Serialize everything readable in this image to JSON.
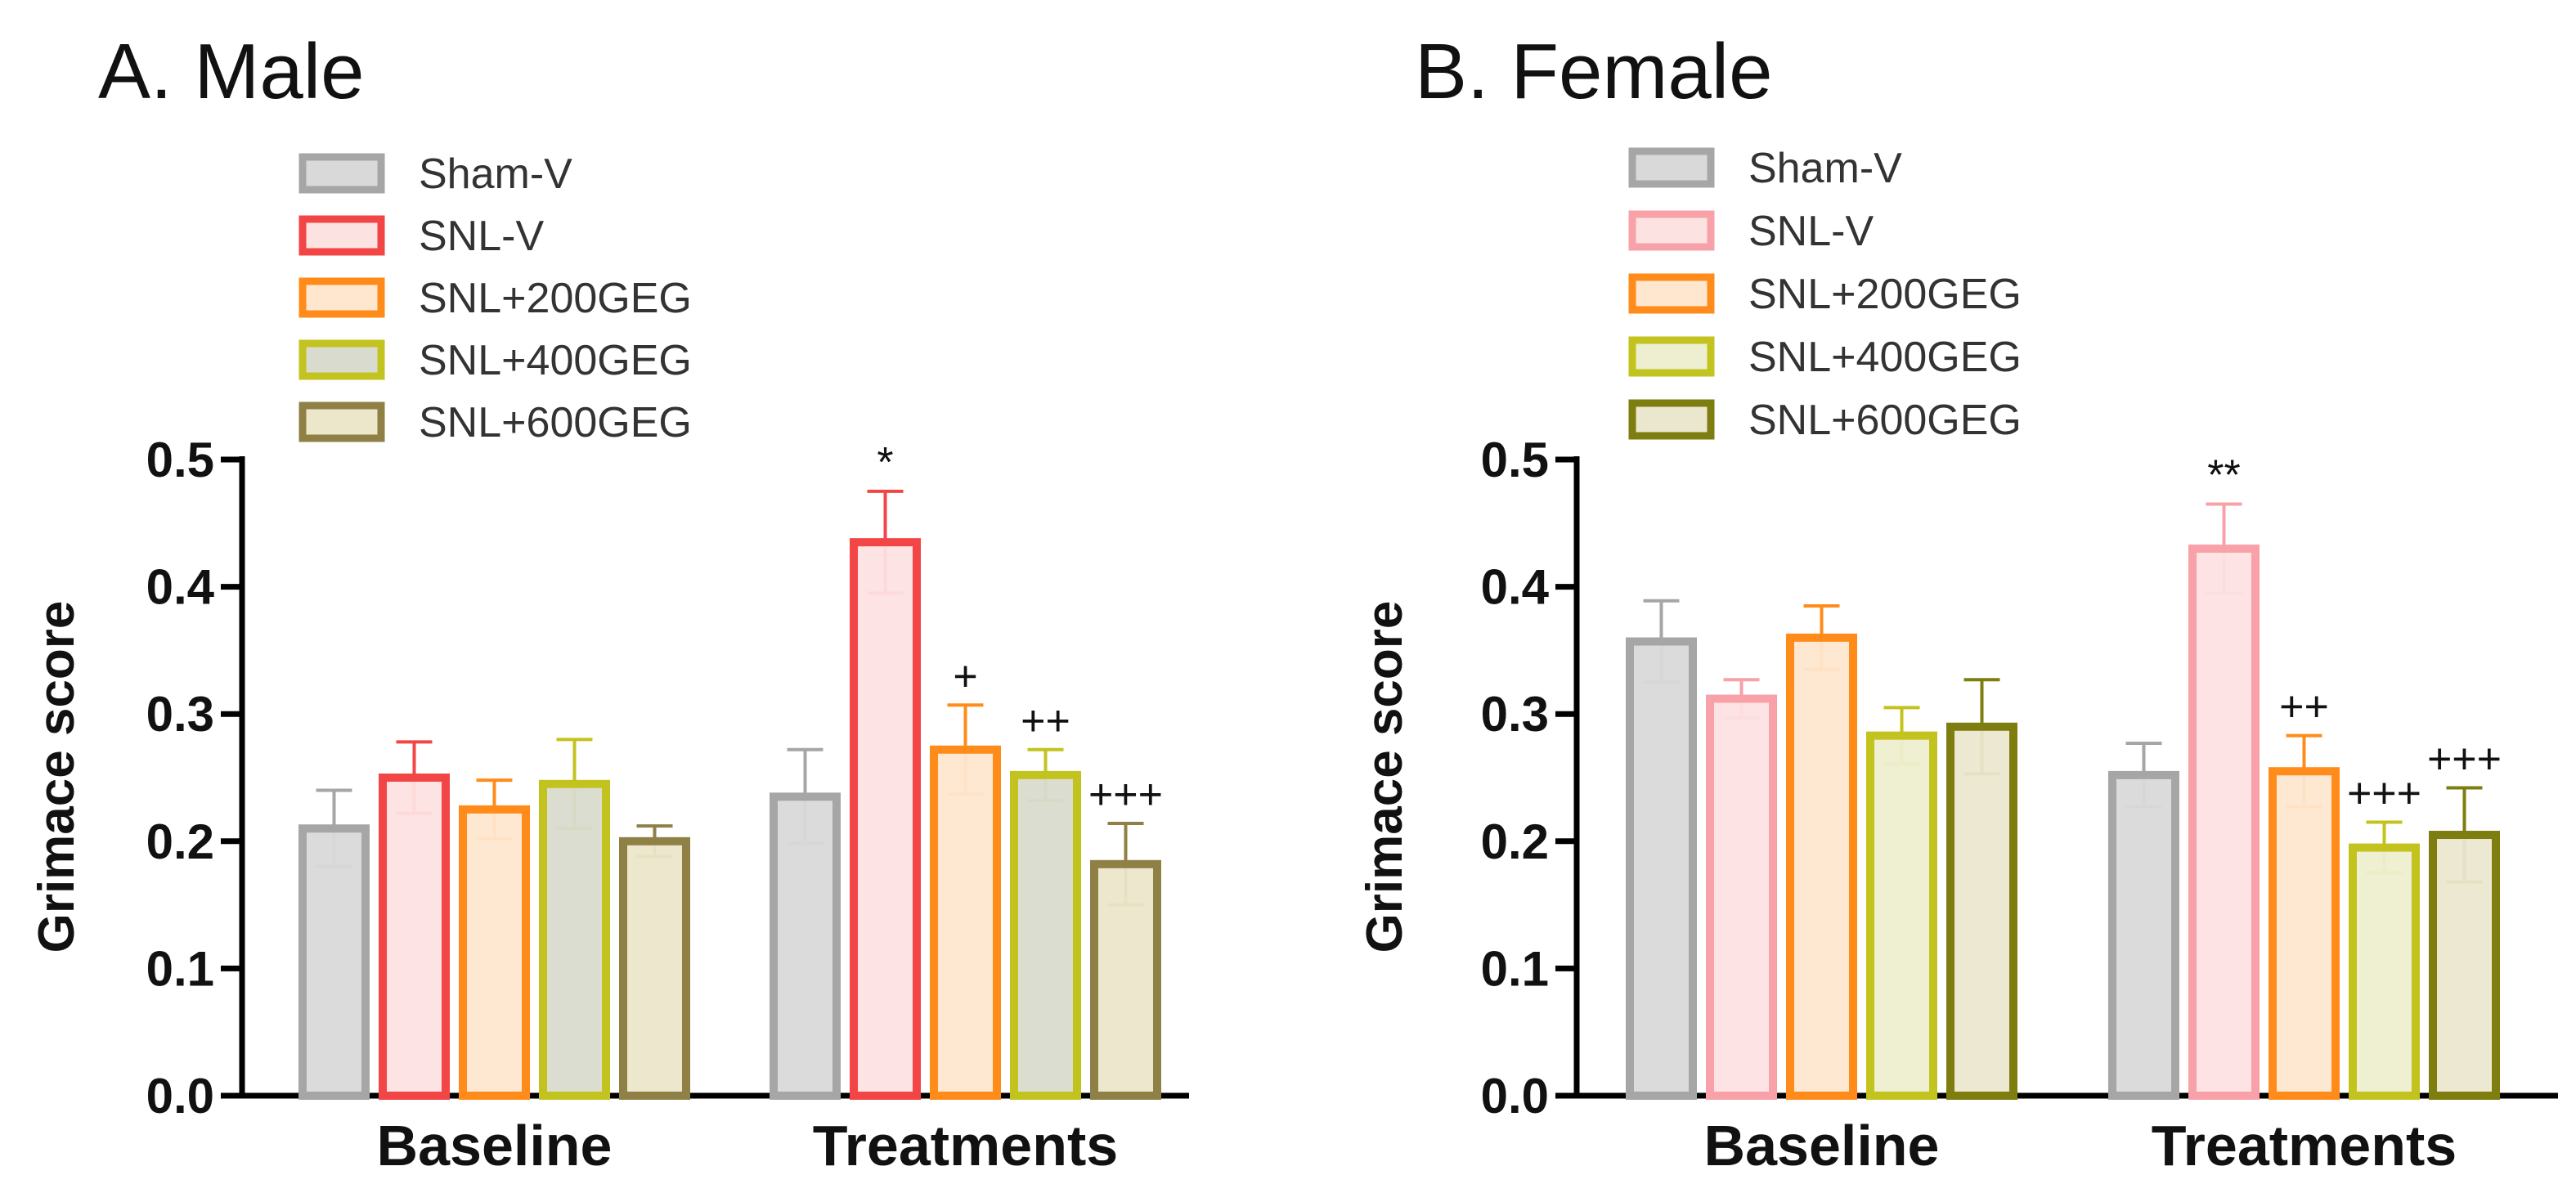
{
  "chart_data": [
    {
      "type": "bar",
      "title": "A. Male",
      "ylabel": "Grimace score",
      "xlabel": "",
      "ylim": [
        0,
        0.5
      ],
      "yticks": [
        "0.0",
        "0.1",
        "0.2",
        "0.3",
        "0.4",
        "0.5"
      ],
      "categories": [
        "Baseline",
        "Treatments"
      ],
      "grid": false,
      "legend_position": "top-left",
      "series": [
        {
          "name": "Sham-V",
          "stroke": "#a6a6a6",
          "fill": "#d9d9d9",
          "values": [
            0.21,
            0.235
          ],
          "errors": [
            0.03,
            0.037
          ],
          "annotations": [
            "",
            ""
          ]
        },
        {
          "name": "SNL-V",
          "stroke": "#f24545",
          "fill": "#fde2e2",
          "values": [
            0.25,
            0.435
          ],
          "errors": [
            0.028,
            0.04
          ],
          "annotations": [
            "",
            "*"
          ]
        },
        {
          "name": "SNL+200GEG",
          "stroke": "#ff8c1a",
          "fill": "#ffe7cf",
          "values": [
            0.225,
            0.272
          ],
          "errors": [
            0.023,
            0.035
          ],
          "annotations": [
            "",
            "+"
          ]
        },
        {
          "name": "SNL+400GEG",
          "stroke": "#c3c320",
          "fill": "#dadbcf",
          "values": [
            0.245,
            0.252
          ],
          "errors": [
            0.035,
            0.02
          ],
          "annotations": [
            "",
            "++"
          ]
        },
        {
          "name": "SNL+600GEG",
          "stroke": "#8f8046",
          "fill": "#ece6cb",
          "values": [
            0.2,
            0.182
          ],
          "errors": [
            0.012,
            0.032
          ],
          "annotations": [
            "",
            "+++"
          ]
        }
      ]
    },
    {
      "type": "bar",
      "title": "B. Female",
      "ylabel": "Grimace score",
      "xlabel": "",
      "ylim": [
        0,
        0.5
      ],
      "yticks": [
        "0.0",
        "0.1",
        "0.2",
        "0.3",
        "0.4",
        "0.5"
      ],
      "categories": [
        "Baseline",
        "Treatments"
      ],
      "grid": false,
      "legend_position": "top-left",
      "series": [
        {
          "name": "Sham-V",
          "stroke": "#a6a6a6",
          "fill": "#d9d9d9",
          "values": [
            0.357,
            0.252
          ],
          "errors": [
            0.032,
            0.025
          ],
          "annotations": [
            "",
            ""
          ]
        },
        {
          "name": "SNL-V",
          "stroke": "#f8a1a8",
          "fill": "#fde2e2",
          "values": [
            0.312,
            0.43
          ],
          "errors": [
            0.015,
            0.035
          ],
          "annotations": [
            "",
            "**"
          ]
        },
        {
          "name": "SNL+200GEG",
          "stroke": "#ff8c1a",
          "fill": "#ffe7cf",
          "values": [
            0.36,
            0.255
          ],
          "errors": [
            0.025,
            0.028
          ],
          "annotations": [
            "",
            "++"
          ]
        },
        {
          "name": "SNL+400GEG",
          "stroke": "#c3c320",
          "fill": "#eeeed0",
          "values": [
            0.283,
            0.195
          ],
          "errors": [
            0.022,
            0.02
          ],
          "annotations": [
            "",
            "+++"
          ]
        },
        {
          "name": "SNL+600GEG",
          "stroke": "#7d7d10",
          "fill": "#ebe7cf",
          "values": [
            0.29,
            0.205
          ],
          "errors": [
            0.037,
            0.037
          ],
          "annotations": [
            "",
            "+++"
          ]
        }
      ]
    }
  ]
}
